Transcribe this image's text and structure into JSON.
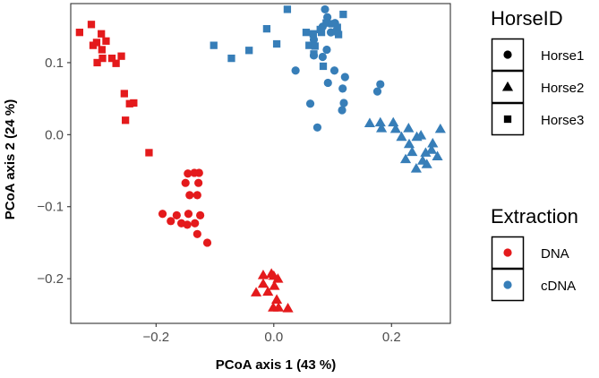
{
  "chart_data": {
    "type": "scatter",
    "title": "",
    "xlabel": "PCoA axis 1 (43 %)",
    "ylabel": "PCoA axis 2 (24 %)",
    "xlim": [
      -0.345,
      0.3
    ],
    "ylim": [
      -0.262,
      0.182
    ],
    "xticks": [
      -0.2,
      0.0,
      0.2
    ],
    "xtick_labels": [
      "−0.2",
      "0.0",
      "0.2"
    ],
    "yticks": [
      -0.2,
      -0.1,
      0.0,
      0.1
    ],
    "ytick_labels": [
      "−0.2",
      "−0.1",
      "0.0",
      "0.1"
    ],
    "grid": false,
    "legends": {
      "shape": {
        "title": "HorseID",
        "entries": [
          {
            "label": "Horse1",
            "shape": "circle"
          },
          {
            "label": "Horse2",
            "shape": "triangle"
          },
          {
            "label": "Horse3",
            "shape": "square"
          }
        ]
      },
      "color": {
        "title": "Extraction",
        "entries": [
          {
            "label": "DNA",
            "color": "#e41a1c"
          },
          {
            "label": "cDNA",
            "color": "#377eb8"
          }
        ]
      }
    },
    "series": [
      {
        "name": "Horse1 / DNA",
        "horse": "Horse1",
        "extraction": "DNA",
        "shape": "circle",
        "color": "#e41a1c",
        "x": [
          -0.146,
          -0.135,
          -0.127,
          -0.128,
          -0.15,
          -0.143,
          -0.13,
          -0.189,
          -0.165,
          -0.145,
          -0.125,
          -0.157,
          -0.147,
          -0.134,
          -0.13,
          -0.113,
          -0.175
        ],
        "y": [
          -0.054,
          -0.053,
          -0.053,
          -0.067,
          -0.067,
          -0.084,
          -0.084,
          -0.11,
          -0.112,
          -0.11,
          -0.112,
          -0.123,
          -0.125,
          -0.123,
          -0.138,
          -0.15,
          -0.12
        ]
      },
      {
        "name": "Horse2 / DNA",
        "horse": "Horse2",
        "extraction": "DNA",
        "shape": "triangle",
        "color": "#e41a1c",
        "x": [
          -0.018,
          -0.004,
          0.0,
          0.007,
          -0.018,
          0.001,
          -0.03,
          -0.01,
          0.005,
          -0.001,
          0.008,
          0.024
        ],
        "y": [
          -0.195,
          -0.193,
          -0.196,
          -0.2,
          -0.207,
          -0.21,
          -0.219,
          -0.218,
          -0.229,
          -0.24,
          -0.24,
          -0.241
        ]
      },
      {
        "name": "Horse3 / DNA",
        "horse": "Horse3",
        "extraction": "DNA",
        "shape": "square",
        "color": "#e41a1c",
        "x": [
          -0.31,
          -0.293,
          -0.33,
          -0.301,
          -0.285,
          -0.307,
          -0.292,
          -0.259,
          -0.291,
          -0.275,
          -0.3,
          -0.268,
          -0.254,
          -0.245,
          -0.238,
          -0.252,
          -0.212
        ],
        "y": [
          0.153,
          0.14,
          0.142,
          0.128,
          0.13,
          0.124,
          0.118,
          0.109,
          0.106,
          0.106,
          0.1,
          0.099,
          0.057,
          0.043,
          0.044,
          0.02,
          -0.025
        ]
      },
      {
        "name": "Horse1 / cDNA",
        "horse": "Horse1",
        "extraction": "cDNA",
        "shape": "circle",
        "color": "#377eb8",
        "x": [
          0.087,
          0.091,
          0.083,
          0.104,
          0.068,
          0.097,
          0.09,
          0.068,
          0.083,
          0.037,
          0.103,
          0.121,
          0.181,
          0.176,
          0.117,
          0.119,
          0.062,
          0.074,
          0.116,
          0.092
        ],
        "y": [
          0.174,
          0.163,
          0.15,
          0.155,
          0.132,
          0.142,
          0.118,
          0.11,
          0.108,
          0.089,
          0.089,
          0.08,
          0.07,
          0.06,
          0.064,
          0.044,
          0.043,
          0.01,
          0.034,
          0.072
        ]
      },
      {
        "name": "Horse2 / cDNA",
        "horse": "Horse2",
        "extraction": "cDNA",
        "shape": "triangle",
        "color": "#377eb8",
        "x": [
          0.163,
          0.181,
          0.203,
          0.183,
          0.229,
          0.207,
          0.25,
          0.243,
          0.283,
          0.23,
          0.27,
          0.268,
          0.258,
          0.235,
          0.253,
          0.278,
          0.26,
          0.242,
          0.224,
          0.217
        ],
        "y": [
          0.016,
          0.017,
          0.017,
          0.009,
          0.009,
          0.008,
          -0.001,
          -0.003,
          0.008,
          -0.013,
          -0.012,
          -0.021,
          -0.025,
          -0.024,
          -0.036,
          -0.03,
          -0.041,
          -0.047,
          -0.034,
          -0.003
        ]
      },
      {
        "name": "Horse3 / cDNA",
        "horse": "Horse3",
        "extraction": "cDNA",
        "shape": "square",
        "color": "#377eb8",
        "x": [
          0.023,
          0.118,
          0.089,
          0.099,
          0.108,
          0.079,
          0.107,
          0.081,
          0.11,
          0.055,
          0.06,
          0.07,
          -0.012,
          -0.102,
          0.068,
          0.084,
          0.005,
          -0.072,
          -0.042,
          0.067
        ],
        "y": [
          0.174,
          0.167,
          0.155,
          0.154,
          0.149,
          0.146,
          0.143,
          0.142,
          0.139,
          0.142,
          0.124,
          0.123,
          0.147,
          0.124,
          0.112,
          0.095,
          0.126,
          0.106,
          0.117,
          0.14
        ]
      }
    ]
  }
}
